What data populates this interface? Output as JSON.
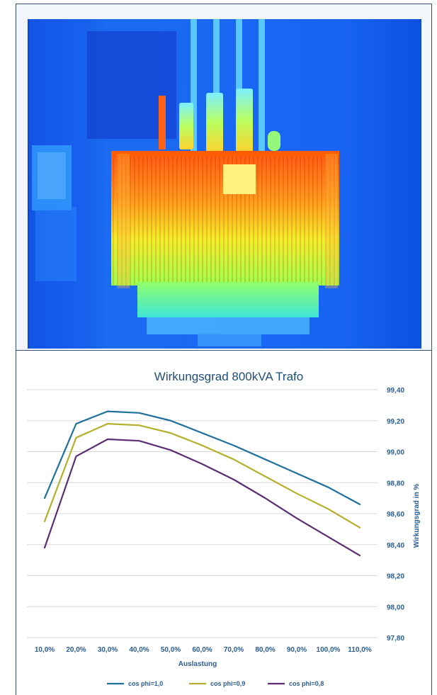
{
  "figure": {
    "thermal_image": "thermal-camera-image-of-transformer"
  },
  "chart_data": {
    "type": "line",
    "title": "Wirkungsgrad 800kVA Trafo",
    "xlabel": "Auslastung",
    "ylabel": "Wirkungsgrad in %",
    "x_tick_labels": [
      "10,0%",
      "20,0%",
      "30,0%",
      "40,0%",
      "50,0%",
      "60,0%",
      "70,0%",
      "80,0%",
      "90,0%",
      "100,0%",
      "110,0%"
    ],
    "x": [
      10,
      20,
      30,
      40,
      50,
      60,
      70,
      80,
      90,
      100,
      110
    ],
    "y_tick_labels": [
      "99,40",
      "99,20",
      "99,00",
      "98,80",
      "98,60",
      "98,40",
      "98,20",
      "98,00",
      "97,80"
    ],
    "ylim": [
      97.8,
      99.4
    ],
    "y_axis_side": "right",
    "grid": true,
    "legend_position": "bottom",
    "series": [
      {
        "name": "cos phi=1,0",
        "color": "#1f6f9c",
        "values": [
          98.7,
          99.18,
          99.26,
          99.25,
          99.2,
          99.12,
          99.04,
          98.95,
          98.86,
          98.77,
          98.66
        ]
      },
      {
        "name": "cos phi=0,9",
        "color": "#b5b02c",
        "values": [
          98.55,
          99.09,
          99.18,
          99.17,
          99.12,
          99.04,
          98.95,
          98.84,
          98.73,
          98.63,
          98.51
        ]
      },
      {
        "name": "cos phi=0,8",
        "color": "#5a2e72",
        "values": [
          98.38,
          98.97,
          99.08,
          99.07,
          99.01,
          98.92,
          98.82,
          98.7,
          98.57,
          98.45,
          98.33
        ]
      }
    ]
  }
}
